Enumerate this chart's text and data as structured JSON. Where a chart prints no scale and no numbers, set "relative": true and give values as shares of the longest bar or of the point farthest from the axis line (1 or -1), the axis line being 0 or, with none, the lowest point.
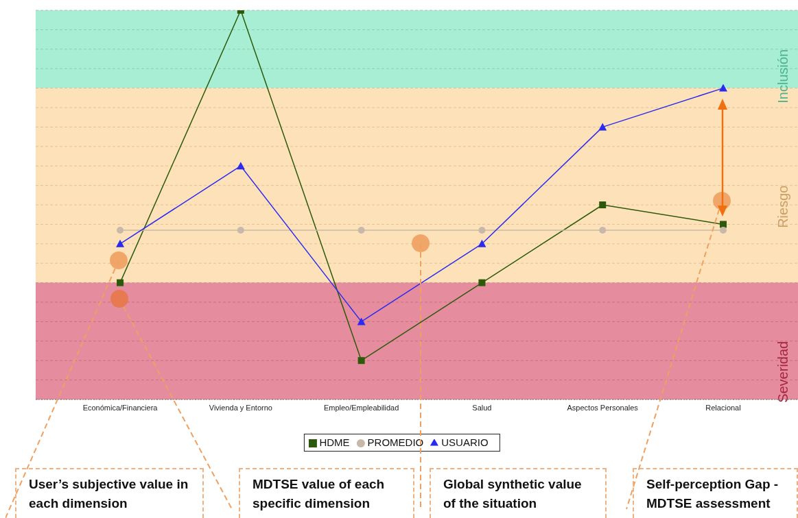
{
  "chart_data": {
    "type": "line",
    "relative": true,
    "categories": [
      "Económica/Financiera",
      "Vivienda y Entorno",
      "Empleo/Empleabilidad",
      "Salud",
      "Aspectos Personales",
      "Relacional"
    ],
    "series": [
      {
        "name": "HDME",
        "color": "#2d5a0a",
        "marker": "square",
        "values": [
          0.3,
          1,
          0.1,
          0.3,
          0.5,
          0.45
        ]
      },
      {
        "name": "PROMEDIO",
        "color": "#c8b8a8",
        "marker": "circle",
        "values": [
          0.435,
          0.435,
          0.435,
          0.435,
          0.435,
          0.435
        ]
      },
      {
        "name": "USUARIO",
        "color": "#2b2bf0",
        "marker": "triangle",
        "values": [
          0.4,
          0.6,
          0.2,
          0.4,
          0.7,
          0.8
        ]
      }
    ],
    "bands": [
      {
        "axis": "y",
        "from": 0.8,
        "to": 1,
        "label": "Inclusión",
        "color": "#5fe0b0"
      },
      {
        "axis": "y",
        "from": 0.3,
        "to": 0.8,
        "label": "Riesgo",
        "color": "#fcc880"
      },
      {
        "axis": "y",
        "from": 0,
        "to": 0.3,
        "label": "Severidad",
        "color": "#d03050"
      }
    ],
    "annotations": [
      "User’s subjective value in each dimension",
      "MDTSE value of each specific dimension",
      "Global synthetic value of the situation",
      "Self-perception Gap - MDTSE assessment"
    ],
    "grid": "y",
    "legend": "bottom"
  }
}
